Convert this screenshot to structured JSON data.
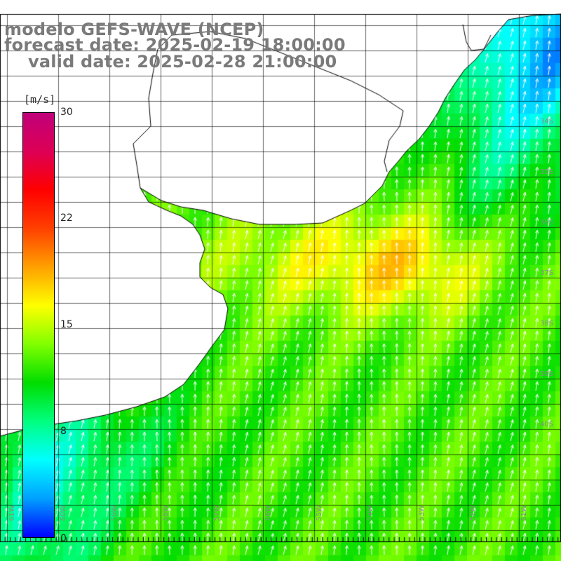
{
  "title": {
    "line1": "modelo GEFS-WAVE (NCEP)",
    "line2": "forecast date: 2025-02-19 18:00:00",
    "line3": "valid date: 2025-02-28 21:00:00"
  },
  "colorbar": {
    "unit": "[m/s]",
    "ticks": [
      "30",
      "22",
      "15",
      "8",
      "0"
    ],
    "min": 0,
    "max": 30,
    "colors": [
      "#0000ff",
      "#00a0ff",
      "#00ffff",
      "#00ff80",
      "#00dd00",
      "#80ff00",
      "#ffff00",
      "#ffa000",
      "#ff4000",
      "#ff0000",
      "#dd0055",
      "#c0007a"
    ]
  },
  "map": {
    "variable": "wind speed with direction arrows",
    "grid": true,
    "colors": {
      "land": "#ffffff",
      "coast": "#000000",
      "grid": "#000000",
      "arrow": "#ffffff"
    }
  },
  "labels": {
    "lon": [
      "61W",
      "60W",
      "59W",
      "58W",
      "57W",
      "56W",
      "55W",
      "54W",
      "53W",
      "52W",
      "51W"
    ],
    "lat": [
      "34S",
      "35S",
      "36S",
      "37S",
      "38S",
      "39S",
      "40S"
    ]
  }
}
